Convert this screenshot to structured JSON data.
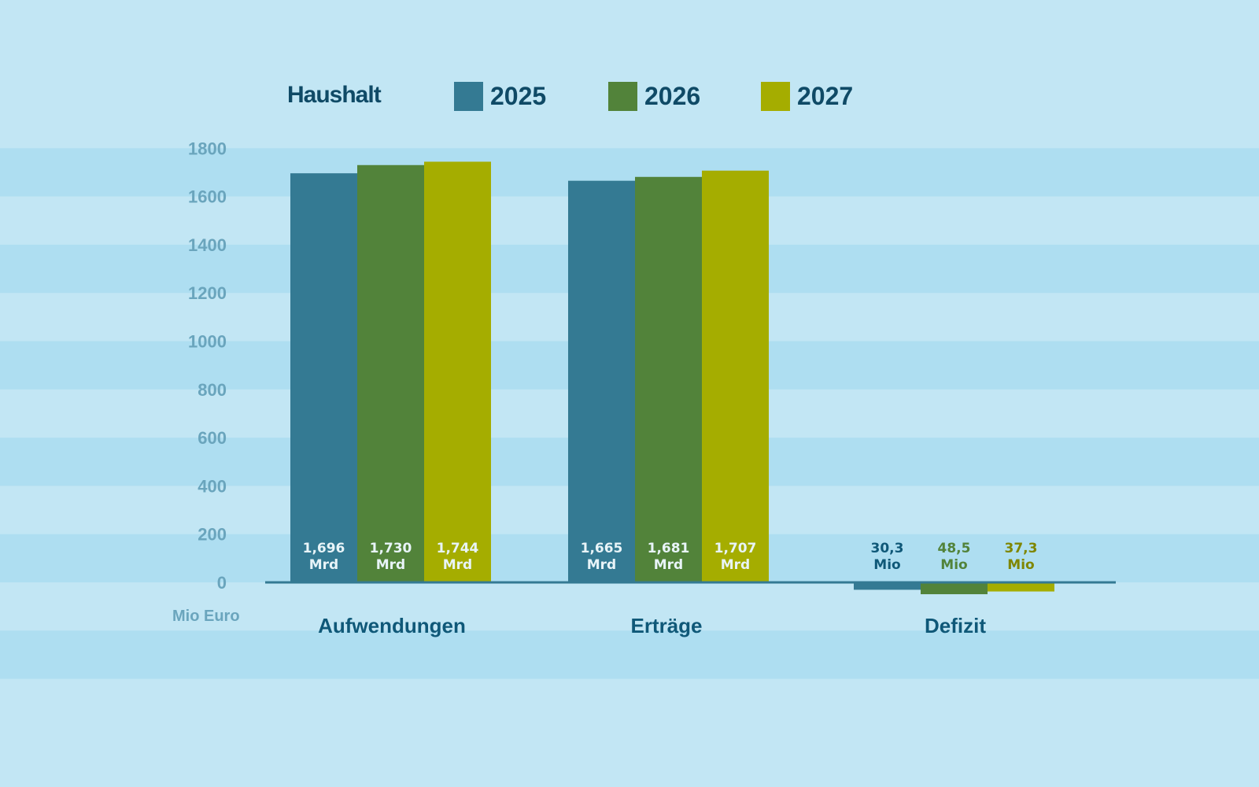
{
  "chart_data": {
    "type": "bar",
    "title": "Haushalt",
    "ylabel": "Mio Euro",
    "ylim": [
      0,
      1800
    ],
    "yticks": [
      "1800",
      "1600",
      "1400",
      "1200",
      "1000",
      "800",
      "600",
      "400",
      "200",
      "0"
    ],
    "categories": [
      "Aufwendungen",
      "Erträge",
      "Defizit"
    ],
    "series": [
      {
        "name": "2025",
        "color": "#347a93",
        "values": [
          1696,
          1665,
          -30.3
        ],
        "labels": [
          "1,696 Mrd",
          "1,665 Mrd",
          "30,3 Mio"
        ]
      },
      {
        "name": "2026",
        "color": "#52833a",
        "values": [
          1730,
          1681,
          -48.5
        ],
        "labels": [
          "1,730 Mrd",
          "1,681 Mrd",
          "48,5 Mio"
        ]
      },
      {
        "name": "2027",
        "color": "#a5ad00",
        "values": [
          1744,
          1707,
          -37.3
        ],
        "labels": [
          "1,744 Mrd",
          "1,707 Mrd",
          "37,3 Mio"
        ]
      }
    ],
    "legend": "top",
    "grid": "alternating horizontal bands"
  },
  "colors": {
    "background": "#c2e6f4",
    "band": "#aedef1",
    "axis": "#347a93",
    "text": "#0f4a66",
    "tick": "#6aa5bd"
  }
}
